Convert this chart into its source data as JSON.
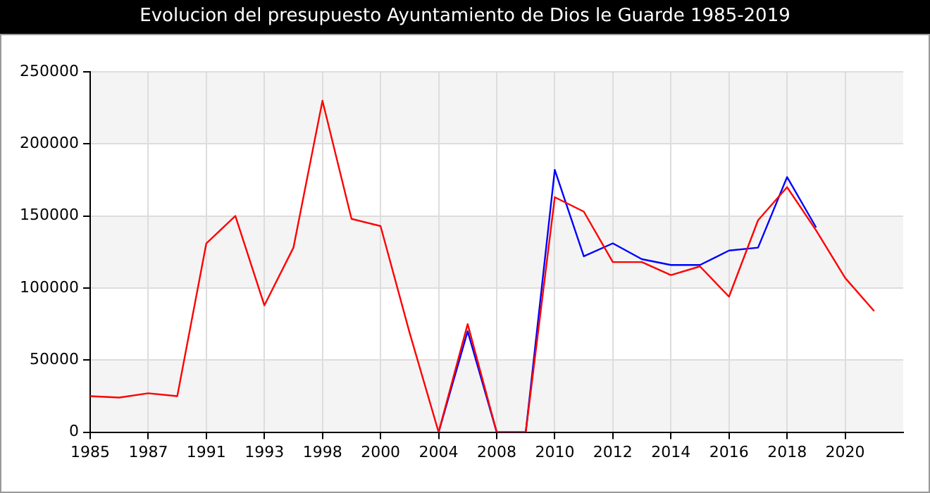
{
  "chart_data": {
    "type": "line",
    "title": "Evolucion del presupuesto Ayuntamiento de Dios le Guarde 1985-2019",
    "categories": [
      "1985",
      null,
      "1987",
      null,
      "1991",
      null,
      "1993",
      null,
      "1998",
      null,
      "2000",
      null,
      "2004",
      null,
      "2008",
      null,
      "2010",
      null,
      "2012",
      null,
      "2014",
      null,
      "2016",
      null,
      "2018",
      null,
      "2020",
      null,
      null
    ],
    "series": [
      {
        "color": "#ff0000",
        "values": [
          25000,
          24000,
          27000,
          25000,
          131000,
          150000,
          88000,
          128000,
          230000,
          148000,
          143000,
          69000,
          0,
          75000,
          0,
          0,
          163000,
          153000,
          118000,
          118000,
          109000,
          115000,
          94000,
          147000,
          170000,
          140000,
          107000,
          84000,
          null
        ]
      },
      {
        "color": "#0000ff",
        "values": [
          null,
          null,
          null,
          null,
          null,
          null,
          null,
          null,
          null,
          null,
          null,
          null,
          0,
          70000,
          0,
          0,
          182000,
          122000,
          131000,
          120000,
          116000,
          116000,
          126000,
          128000,
          177000,
          142000,
          null,
          null,
          null
        ]
      }
    ],
    "ylim": [
      0,
      250000
    ],
    "yticks": [
      0,
      50000,
      100000,
      150000,
      200000,
      250000
    ],
    "grid": true,
    "legend": false,
    "marker": "none",
    "line_style": "solid"
  }
}
